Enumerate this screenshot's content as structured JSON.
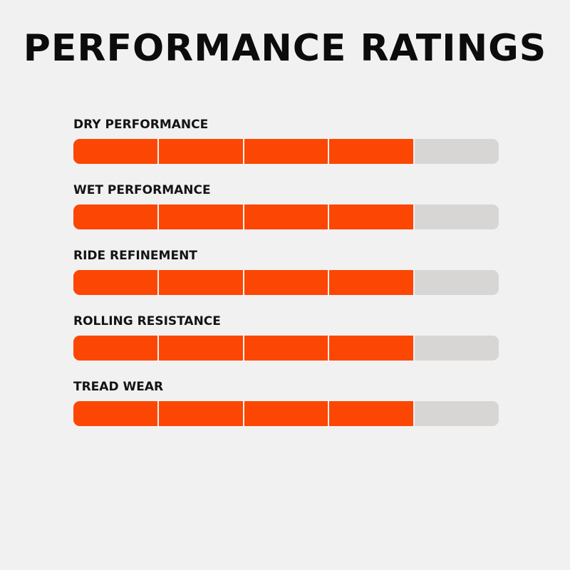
{
  "title": "PERFORMANCE RATINGS",
  "colors": {
    "filled": "#fb4703",
    "empty": "#d8d6d5",
    "background": "#f2f1f1",
    "text": "#0c0c0c"
  },
  "chart_data": {
    "type": "bar",
    "title": "PERFORMANCE RATINGS",
    "max_segments": 5,
    "categories": [
      "DRY PERFORMANCE",
      "WET PERFORMANCE",
      "RIDE REFINEMENT",
      "ROLLING RESISTANCE",
      "TREAD WEAR"
    ],
    "values": [
      4,
      4,
      4,
      4,
      4
    ],
    "xlim": [
      0,
      5
    ],
    "grid": false,
    "legend": "none"
  }
}
